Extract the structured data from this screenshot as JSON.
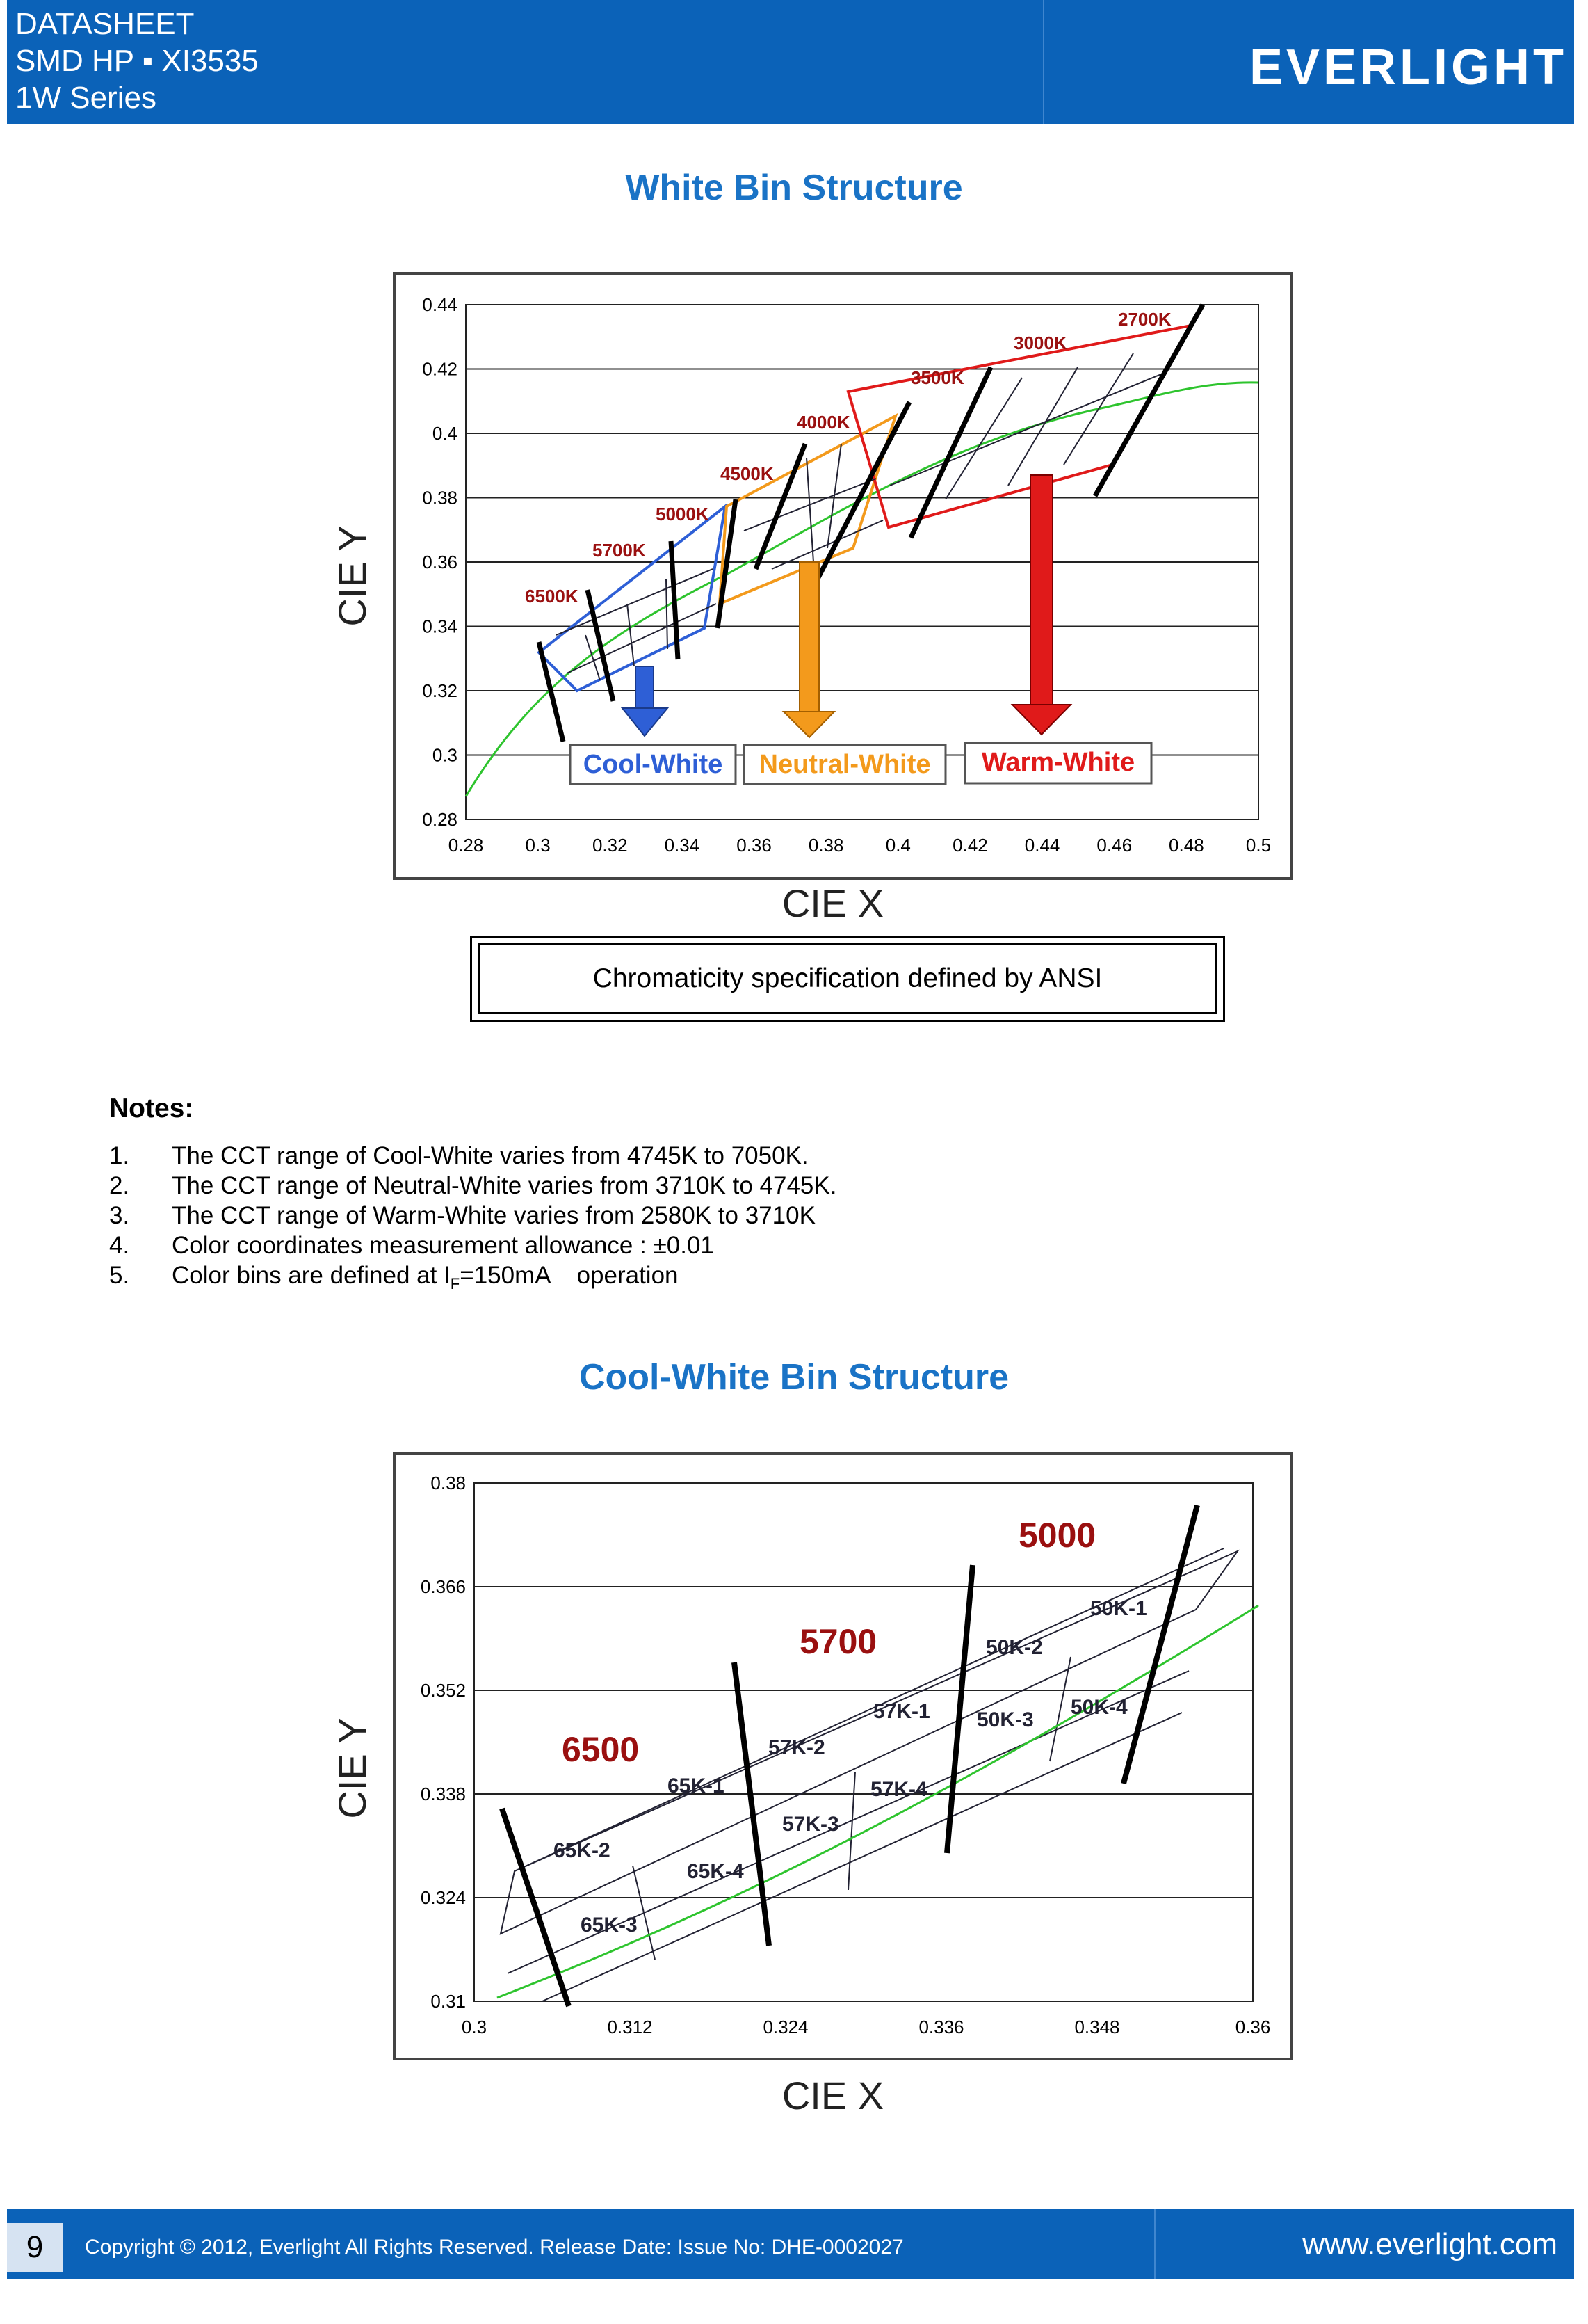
{
  "header": {
    "line1": "DATASHEET",
    "line2": "SMD HP ▪ XI3535",
    "line3": "1W Series",
    "logo": "EVERLIGHT"
  },
  "section1": {
    "title": "White Bin Structure",
    "chart_data": {
      "type": "line",
      "xlabel": "CIE X",
      "ylabel": "CIE Y",
      "xlim": [
        0.28,
        0.5
      ],
      "ylim": [
        0.28,
        0.44
      ],
      "x_ticks": [
        "0.28",
        "0.3",
        "0.32",
        "0.34",
        "0.36",
        "0.38",
        "0.4",
        "0.42",
        "0.44",
        "0.46",
        "0.48",
        "0.5"
      ],
      "y_ticks": [
        "0.44",
        "0.42",
        "0.4",
        "0.38",
        "0.36",
        "0.34",
        "0.32",
        "0.3",
        "0.28"
      ],
      "cct_labels": [
        "6500K",
        "5700K",
        "5000K",
        "4500K",
        "4000K",
        "3500K",
        "3000K",
        "2700K"
      ],
      "groups": [
        "Cool-White",
        "Neutral-White",
        "Warm-White"
      ],
      "colors": {
        "cool": "#2e5fd6",
        "neutral": "#f39a1c",
        "warm": "#e01a1a",
        "locus": "#2ec42e"
      }
    },
    "caption": "Chromaticity specification defined by ANSI"
  },
  "notes": {
    "heading": "Notes:",
    "items": [
      {
        "num": "1.",
        "text": "The CCT range of Cool-White varies from 4745K to 7050K."
      },
      {
        "num": "2.",
        "text": "The CCT range of Neutral-White varies from 3710K to 4745K."
      },
      {
        "num": "3.",
        "text": "The CCT range of Warm-White varies from 2580K to 3710K"
      },
      {
        "num": "4.",
        "text": "Color coordinates measurement allowance : ±0.01"
      },
      {
        "num": "5.",
        "pre": "Color bins are defined at I",
        "sub": "F",
        "post": "=150mA    operation"
      }
    ]
  },
  "section2": {
    "title": "Cool-White Bin Structure",
    "chart_data": {
      "type": "line",
      "xlabel": "CIE X",
      "ylabel": "CIE Y",
      "xlim": [
        0.3,
        0.36
      ],
      "ylim": [
        0.31,
        0.38
      ],
      "x_ticks": [
        "0.3",
        "0.312",
        "0.324",
        "0.336",
        "0.348",
        "0.36"
      ],
      "y_ticks": [
        "0.38",
        "0.366",
        "0.352",
        "0.338",
        "0.324",
        "0.31"
      ],
      "cct_labels": [
        "6500",
        "5700",
        "5000"
      ],
      "bins": [
        "65K-1",
        "65K-2",
        "65K-3",
        "65K-4",
        "57K-1",
        "57K-2",
        "57K-3",
        "57K-4",
        "50K-1",
        "50K-2",
        "50K-3",
        "50K-4"
      ],
      "colors": {
        "cct": "#9a1010",
        "locus": "#2ec42e"
      }
    }
  },
  "footer": {
    "page": "9",
    "copyright": "Copyright © 2012, Everlight All Rights Reserved. Release Date: Issue No: DHE-0002027",
    "url": "www.everlight.com"
  }
}
